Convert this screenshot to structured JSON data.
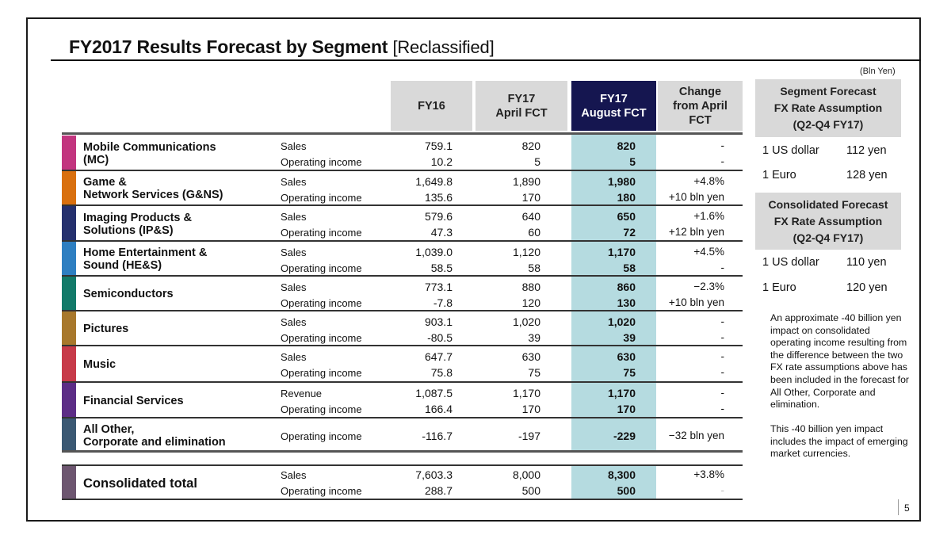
{
  "title": {
    "main": "FY2017  Results Forecast by Segment",
    "suffix": "[Reclassified]"
  },
  "unit_note": "(Bln Yen)",
  "columns": [
    {
      "key": "fy16",
      "label_lines": [
        "FY16"
      ]
    },
    {
      "key": "apr",
      "label_lines": [
        "FY17",
        "April FCT"
      ]
    },
    {
      "key": "aug",
      "label_lines": [
        "FY17",
        "August FCT"
      ],
      "highlight": true
    },
    {
      "key": "chg",
      "label_lines": [
        "Change",
        "from April",
        "FCT"
      ]
    }
  ],
  "colors": {
    "header_bg": "#d9d9d9",
    "header_highlight_bg": "#151650",
    "forecast_band": "#b5dbe0"
  },
  "segments": [
    {
      "name_lines": [
        "Mobile Communications",
        "(MC)"
      ],
      "color": "#c2357f",
      "rows": [
        {
          "metric": "Sales",
          "fy16": "759.1",
          "apr": "820",
          "aug": "820",
          "chg": "-"
        },
        {
          "metric": "Operating income",
          "fy16": "10.2",
          "apr": "5",
          "aug": "5",
          "chg": "-"
        }
      ]
    },
    {
      "name_lines": [
        "Game &",
        "Network Services (G&NS)"
      ],
      "color": "#d9700f",
      "rows": [
        {
          "metric": "Sales",
          "fy16": "1,649.8",
          "apr": "1,890",
          "aug": "1,980",
          "chg": "+4.8%"
        },
        {
          "metric": "Operating income",
          "fy16": "135.6",
          "apr": "170",
          "aug": "180",
          "chg": "+10 bln yen"
        }
      ]
    },
    {
      "name_lines": [
        "Imaging Products &",
        "Solutions (IP&S)"
      ],
      "color": "#25306e",
      "rows": [
        {
          "metric": "Sales",
          "fy16": "579.6",
          "apr": "640",
          "aug": "650",
          "chg": "+1.6%"
        },
        {
          "metric": "Operating income",
          "fy16": "47.3",
          "apr": "60",
          "aug": "72",
          "chg": "+12 bln yen"
        }
      ]
    },
    {
      "name_lines": [
        "Home Entertainment &",
        "Sound (HE&S)"
      ],
      "color": "#2e7fc1",
      "rows": [
        {
          "metric": "Sales",
          "fy16": "1,039.0",
          "apr": "1,120",
          "aug": "1,170",
          "chg": "+4.5%"
        },
        {
          "metric": "Operating income",
          "fy16": "58.5",
          "apr": "58",
          "aug": "58",
          "chg": "-"
        }
      ]
    },
    {
      "name_lines": [
        "Semiconductors"
      ],
      "color": "#127a69",
      "rows": [
        {
          "metric": "Sales",
          "fy16": "773.1",
          "apr": "880",
          "aug": "860",
          "chg": "−2.3%"
        },
        {
          "metric": "Operating income",
          "fy16": "-7.8",
          "apr": "120",
          "aug": "130",
          "chg": "+10 bln yen"
        }
      ]
    },
    {
      "name_lines": [
        "Pictures"
      ],
      "color": "#a8782c",
      "rows": [
        {
          "metric": "Sales",
          "fy16": "903.1",
          "apr": "1,020",
          "aug": "1,020",
          "chg": "-"
        },
        {
          "metric": "Operating income",
          "fy16": "-80.5",
          "apr": "39",
          "aug": "39",
          "chg": "-"
        }
      ]
    },
    {
      "name_lines": [
        "Music"
      ],
      "color": "#c73a49",
      "rows": [
        {
          "metric": "Sales",
          "fy16": "647.7",
          "apr": "630",
          "aug": "630",
          "chg": "-"
        },
        {
          "metric": "Operating income",
          "fy16": "75.8",
          "apr": "75",
          "aug": "75",
          "chg": "-"
        }
      ]
    },
    {
      "name_lines": [
        "Financial Services"
      ],
      "color": "#5c2d86",
      "rows": [
        {
          "metric": "Revenue",
          "fy16": "1,087.5",
          "apr": "1,170",
          "aug": "1,170",
          "chg": "-"
        },
        {
          "metric": "Operating income",
          "fy16": "166.4",
          "apr": "170",
          "aug": "170",
          "chg": "-"
        }
      ]
    },
    {
      "name_lines": [
        "All Other,",
        "Corporate and elimination"
      ],
      "color": "#3a5873",
      "rows": [
        {
          "metric": "Operating income",
          "fy16": "-116.7",
          "apr": "-197",
          "aug": "-229",
          "chg": "−32 bln yen"
        }
      ]
    }
  ],
  "total": {
    "name": "Consolidated total",
    "color": "#6d5670",
    "rows": [
      {
        "metric": "Sales",
        "fy16": "7,603.3",
        "apr": "8,000",
        "aug": "8,300",
        "chg": "+3.8%"
      },
      {
        "metric": "Operating income",
        "fy16": "288.7",
        "apr": "500",
        "aug": "500",
        "chg": "-"
      }
    ]
  },
  "fx_panels": [
    {
      "title_lines": [
        "Segment Forecast",
        "FX Rate Assumption",
        "(Q2-Q4 FY17)"
      ],
      "rates": [
        {
          "label": "1 US dollar",
          "value": "112 yen"
        },
        {
          "label": "1 Euro",
          "value": "128 yen"
        }
      ]
    },
    {
      "title_lines": [
        "Consolidated Forecast",
        "FX Rate Assumption",
        "(Q2-Q4 FY17)"
      ],
      "rates": [
        {
          "label": "1 US dollar",
          "value": "110 yen"
        },
        {
          "label": "1 Euro",
          "value": "120 yen"
        }
      ]
    }
  ],
  "notes": [
    "An approximate -40 billion yen impact on consolidated operating income resulting from the difference between the two FX rate assumptions above has been included in the forecast for All Other, Corporate and elimination.",
    "This -40 billion yen impact includes the impact of emerging market currencies."
  ],
  "page_number": "5"
}
